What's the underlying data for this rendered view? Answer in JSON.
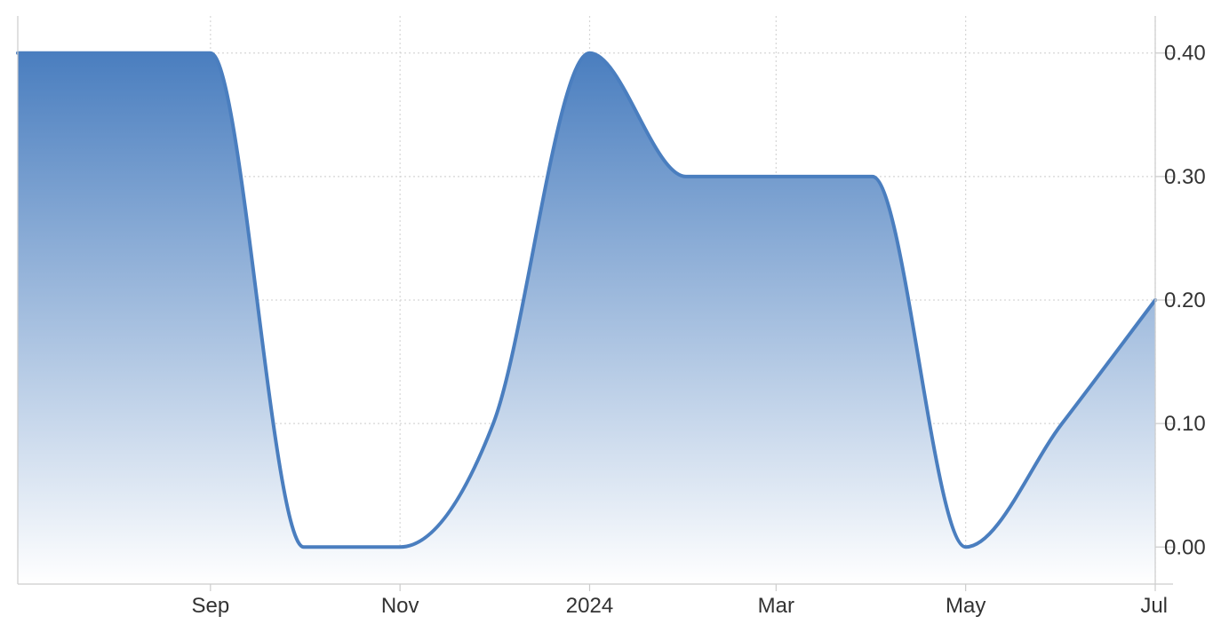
{
  "chart_data": {
    "type": "area",
    "title": "",
    "xlabel": "",
    "ylabel": "",
    "x_tick_labels": [
      "Sep",
      "Nov",
      "2024",
      "Mar",
      "May",
      "Jul"
    ],
    "x_tick_dates": [
      "2023-09-01",
      "2023-11-01",
      "2024-01-01",
      "2024-03-01",
      "2024-05-01",
      "2024-07-01"
    ],
    "y_tick_labels": [
      "0.40",
      "0.30",
      "0.20",
      "0.10",
      "0.00"
    ],
    "y_tick_values": [
      0.4,
      0.3,
      0.2,
      0.1,
      0.0
    ],
    "ylim": [
      -0.03,
      0.43
    ],
    "xlim": [
      "2023-07-01",
      "2024-07-01"
    ],
    "grid": true,
    "y_axis_side": "right",
    "series": [
      {
        "x": [
          "2023-07-01",
          "2023-08-01",
          "2023-09-01",
          "2023-10-01",
          "2023-11-01",
          "2023-12-01",
          "2024-01-01",
          "2024-02-01",
          "2024-03-01",
          "2024-04-01",
          "2024-05-01",
          "2024-06-01",
          "2024-07-01"
        ],
        "values": [
          0.4,
          0.4,
          0.4,
          0.0,
          0.0,
          0.1,
          0.4,
          0.3,
          0.3,
          0.3,
          0.0,
          0.1,
          0.2
        ]
      }
    ],
    "colors": {
      "line": "#4a7ebf",
      "fill_top": "#4a7ebf",
      "fill_bottom": "#ffffff",
      "grid": "#d6d6d6",
      "axis": "#cccccc",
      "text": "#333333"
    }
  }
}
